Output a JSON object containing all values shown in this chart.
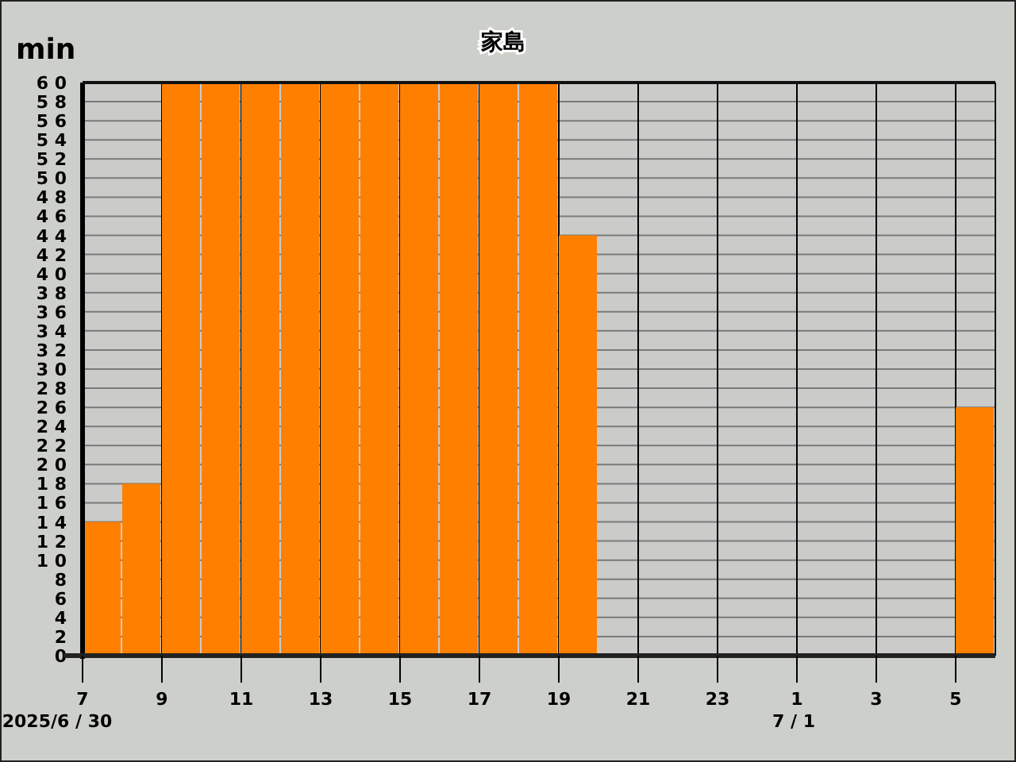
{
  "chart_data": {
    "type": "bar",
    "title": "家島",
    "ylabel": "min",
    "categories": [
      "7",
      null,
      "9",
      null,
      "11",
      null,
      "13",
      null,
      "15",
      null,
      "17",
      null,
      "19",
      null,
      "21",
      null,
      "23",
      null,
      "1",
      null,
      "3",
      null,
      "5"
    ],
    "values": [
      14,
      18,
      60,
      60,
      60,
      60,
      60,
      60,
      60,
      60,
      60,
      60,
      44,
      0,
      0,
      0,
      0,
      0,
      0,
      0,
      0,
      0,
      26
    ],
    "color": "#ff8000",
    "ylim": [
      0,
      60
    ],
    "yticks": [
      0,
      2,
      4,
      6,
      8,
      10,
      12,
      14,
      16,
      18,
      20,
      22,
      24,
      26,
      28,
      30,
      32,
      34,
      36,
      38,
      40,
      42,
      44,
      46,
      48,
      50,
      52,
      54,
      56,
      58,
      60
    ],
    "grid": true,
    "annotations": [
      "2025/6 / 30",
      "7 / 1"
    ]
  }
}
